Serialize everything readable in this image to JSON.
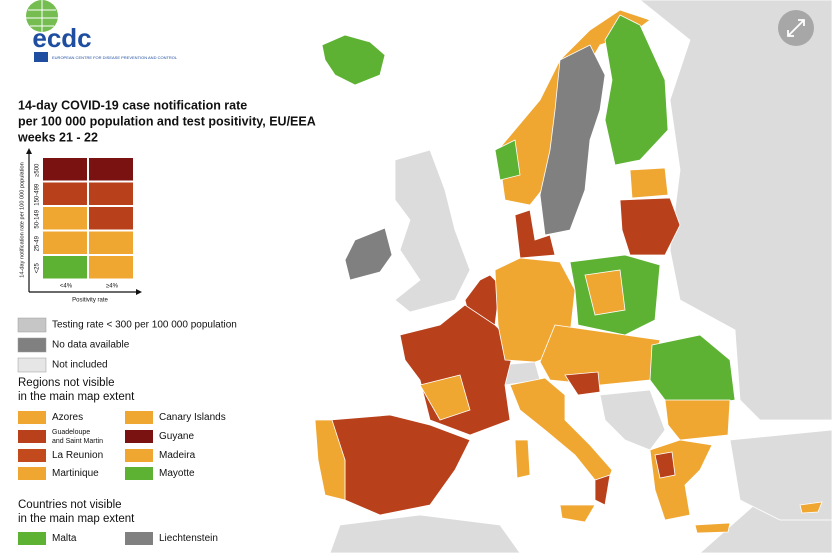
{
  "logo": {
    "name": "ecdc",
    "subtitle": "EUROPEAN CENTRE FOR DISEASE PREVENTION AND CONTROL"
  },
  "title": [
    "14-day COVID-19 case notification rate",
    "per 100 000 population and test positivity, EU/EEA",
    "weeks 21 - 22"
  ],
  "matrix": {
    "y_label": "14-day notification rate per 100 000 population",
    "x_label": "Positivity rate",
    "rows": [
      "≥500",
      "150-499",
      "50-149",
      "25-49",
      "<25"
    ],
    "columns": [
      "<4%",
      "≥4%"
    ],
    "colors": [
      [
        "#7a1212",
        "#7a1212"
      ],
      [
        "#b8401a",
        "#b8401a"
      ],
      [
        "#f0a732",
        "#b8401a"
      ],
      [
        "#f0a732",
        "#f0a732"
      ],
      [
        "#5db233",
        "#f0a732"
      ]
    ]
  },
  "status_legend": [
    {
      "label": "Testing rate < 300 per 100 000 population",
      "color": "#c6c6c6"
    },
    {
      "label": "No data available",
      "color": "#808080"
    },
    {
      "label": "Not included",
      "color": "#e6e6e6"
    }
  ],
  "regions": {
    "heading": [
      "Regions not visible",
      "in the main map extent"
    ],
    "items": [
      {
        "label": "Azores",
        "color": "#f0a732"
      },
      {
        "label": [
          "Guadeloupe",
          "and Saint Martin"
        ],
        "color": "#b8401a"
      },
      {
        "label": "La Reunion",
        "color": "#c24a1c"
      },
      {
        "label": "Martinique",
        "color": "#f0a732"
      },
      {
        "label": "Canary Islands",
        "color": "#f0a732"
      },
      {
        "label": "Guyane",
        "color": "#7a1212"
      },
      {
        "label": "Madeira",
        "color": "#f0a732"
      },
      {
        "label": "Mayotte",
        "color": "#5db233"
      }
    ]
  },
  "countries": {
    "heading": [
      "Countries not visible",
      "in the main map extent"
    ],
    "items": [
      {
        "label": "Malta",
        "color": "#5db233"
      },
      {
        "label": "Liechtenstein",
        "color": "#808080"
      }
    ]
  }
}
